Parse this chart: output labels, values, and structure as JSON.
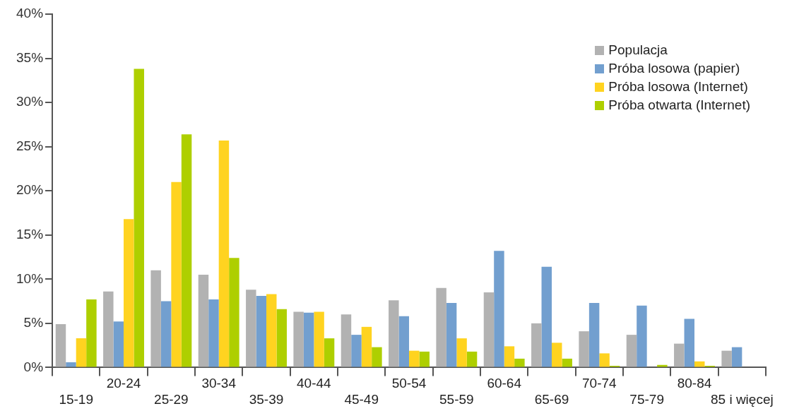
{
  "chart_data": {
    "type": "bar",
    "categories": [
      "15-19",
      "20-24",
      "25-29",
      "30-34",
      "35-39",
      "40-44",
      "45-49",
      "50-54",
      "55-59",
      "60-64",
      "65-69",
      "70-74",
      "75-79",
      "80-84",
      "85 i więcej"
    ],
    "series": [
      {
        "name": "Populacja",
        "color": "#b2b2b2",
        "values": [
          4.9,
          8.6,
          11.0,
          10.5,
          8.8,
          6.3,
          6.0,
          7.6,
          9.0,
          8.5,
          5.0,
          4.1,
          3.7,
          2.7,
          1.9
        ]
      },
      {
        "name": "Próba losowa (papier)",
        "color": "#729fcf",
        "values": [
          0.6,
          5.2,
          7.5,
          7.7,
          8.1,
          6.2,
          3.7,
          5.8,
          7.3,
          13.2,
          11.4,
          7.3,
          7.0,
          5.5,
          2.3
        ]
      },
      {
        "name": "Próba losowa (Internet)",
        "color": "#ffd320",
        "values": [
          3.3,
          16.8,
          21.0,
          25.7,
          8.3,
          6.3,
          4.6,
          1.9,
          3.3,
          2.4,
          2.8,
          1.6,
          0,
          0.7,
          0
        ]
      },
      {
        "name": "Próba otwarta (Internet)",
        "color": "#aecf00",
        "values": [
          7.7,
          33.8,
          26.4,
          12.4,
          6.6,
          3.3,
          2.3,
          1.8,
          1.8,
          1.0,
          1.0,
          0.2,
          0.3,
          0.2,
          0
        ]
      }
    ],
    "ylim": [
      0,
      40
    ],
    "yticks": [
      {
        "value": 0,
        "label": "0%"
      },
      {
        "value": 5,
        "label": "5%"
      },
      {
        "value": 10,
        "label": "10%"
      },
      {
        "value": 15,
        "label": "15%"
      },
      {
        "value": 20,
        "label": "20%"
      },
      {
        "value": 25,
        "label": "25%"
      },
      {
        "value": 30,
        "label": "30%"
      },
      {
        "value": 35,
        "label": "35%"
      },
      {
        "value": 40,
        "label": "40%"
      }
    ],
    "grid": false,
    "legend": "top right"
  }
}
